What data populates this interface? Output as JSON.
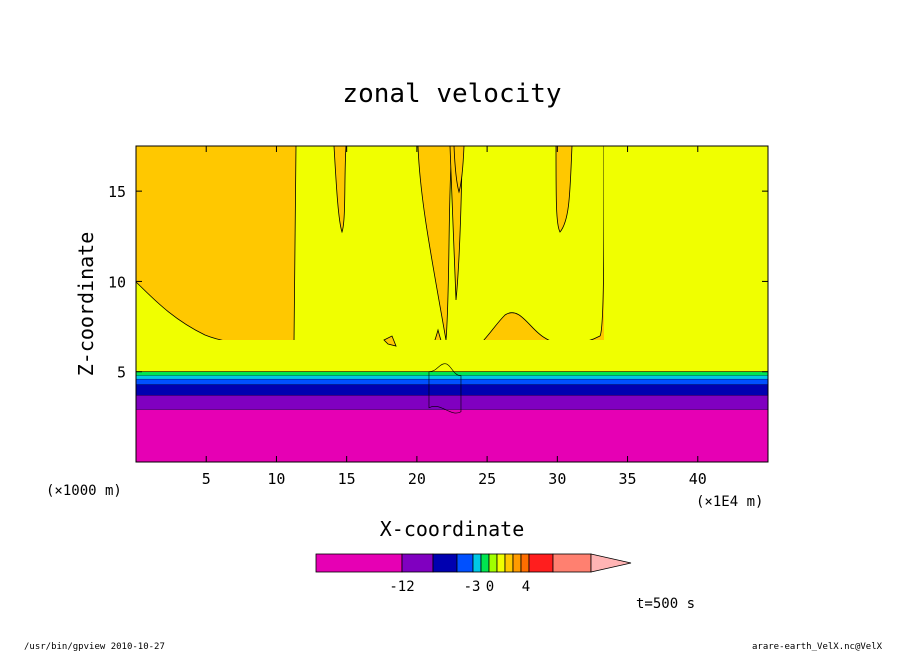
{
  "chart_data": {
    "type": "heatmap",
    "title": "zonal velocity",
    "xlabel": "X-coordinate",
    "ylabel": "Z-coordinate",
    "x_unit_note": "(×1E4 m)",
    "y_unit_note": "(×1000 m)",
    "xlim": [
      0,
      450000
    ],
    "ylim": [
      0,
      17.5
    ],
    "x_ticks": [
      {
        "value": 5,
        "label": "5"
      },
      {
        "value": 10,
        "label": "10"
      },
      {
        "value": 15,
        "label": "15"
      },
      {
        "value": 20,
        "label": "20"
      },
      {
        "value": 25,
        "label": "25"
      },
      {
        "value": 30,
        "label": "30"
      },
      {
        "value": 35,
        "label": "35"
      },
      {
        "value": 40,
        "label": "40"
      }
    ],
    "y_ticks": [
      {
        "value": 5,
        "label": "5"
      },
      {
        "value": 10,
        "label": "10"
      },
      {
        "value": 15,
        "label": "15"
      }
    ],
    "layers_z_top_km": [
      {
        "name": "magenta",
        "z_top": 2.9,
        "color": "#e600b4"
      },
      {
        "name": "purple",
        "z_top": 3.7,
        "color": "#8000c0"
      },
      {
        "name": "dark-blue",
        "z_top": 4.3,
        "color": "#0000b0"
      },
      {
        "name": "blue",
        "z_top": 4.6,
        "color": "#0050ff"
      },
      {
        "name": "cyan",
        "z_top": 4.8,
        "color": "#00c8e6"
      },
      {
        "name": "green",
        "z_top": 5.0,
        "color": "#00e650"
      },
      {
        "name": "yellow",
        "z_top": 17.5,
        "color": "#f0ff00"
      }
    ],
    "colorbar": {
      "colors": [
        "#e600b4",
        "#8000c0",
        "#0000b0",
        "#0050ff",
        "#00c8e6",
        "#00e650",
        "#a0ff00",
        "#f0ff00",
        "#ffc800",
        "#ff9b00",
        "#ff6e00",
        "#ff1e1e",
        "#ff8070",
        "#ffb4b4"
      ],
      "tick_labels": [
        "-12",
        "-3",
        "0",
        "4"
      ]
    },
    "time_label": "t=500 s"
  },
  "footer": {
    "left": "/usr/bin/gpview  2010-10-27",
    "right": "arare-earth_VelX.nc@VelX"
  }
}
